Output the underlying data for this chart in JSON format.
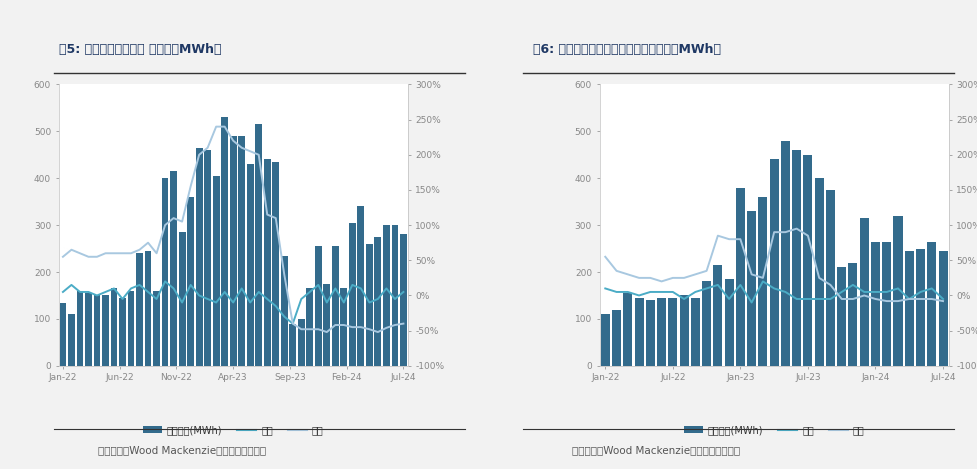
{
  "chart1": {
    "title": "图5: 德国储能月度新增 （单位：MWh）",
    "source": "数据来源：Wood Mackenzie，东吴证券研究所",
    "xtick_labels": [
      "Jan-22",
      "Jun-22",
      "Nov-22",
      "Apr-23",
      "Sep-23",
      "Feb-24",
      "Jul-24"
    ],
    "bar_color": "#336B8C",
    "line_huan_color": "#4BACC6",
    "line_tong_color": "#A8C8E0",
    "bar_values": [
      135,
      110,
      160,
      155,
      150,
      150,
      165,
      145,
      160,
      240,
      245,
      160,
      400,
      415,
      285,
      360,
      465,
      460,
      405,
      530,
      490,
      490,
      430,
      515,
      440,
      435,
      235,
      90,
      100,
      165,
      255,
      175,
      255,
      165,
      305,
      340,
      260,
      275,
      300,
      300,
      280
    ],
    "huan_pct": [
      5,
      15,
      5,
      5,
      0,
      5,
      10,
      -5,
      10,
      15,
      5,
      -5,
      20,
      10,
      -10,
      15,
      0,
      -5,
      -10,
      5,
      -10,
      10,
      -10,
      5,
      -5,
      -15,
      -30,
      -40,
      -5,
      5,
      15,
      -10,
      10,
      -10,
      15,
      10,
      -10,
      -5,
      10,
      -5,
      5
    ],
    "tong_pct": [
      55,
      65,
      60,
      55,
      55,
      60,
      60,
      60,
      60,
      65,
      75,
      60,
      100,
      110,
      105,
      155,
      200,
      210,
      240,
      240,
      220,
      210,
      205,
      200,
      115,
      110,
      30,
      -40,
      -48,
      -48,
      -48,
      -52,
      -42,
      -42,
      -45,
      -45,
      -48,
      -52,
      -46,
      -42,
      -40
    ]
  },
  "chart2": {
    "title": "图6: 德国电池户用储能月度新增（单位：MWh）",
    "source": "数据来源：Wood Mackenzie，东吴证券研究所",
    "xtick_labels": [
      "Jan-22",
      "Jul-22",
      "Jan-23",
      "Jul-23",
      "Jan-24",
      "Jul-24"
    ],
    "bar_color": "#336B8C",
    "line_huan_color": "#4BACC6",
    "line_tong_color": "#A8C8E0",
    "bar_values": [
      110,
      120,
      155,
      145,
      140,
      145,
      145,
      150,
      145,
      180,
      215,
      185,
      380,
      330,
      360,
      440,
      480,
      460,
      450,
      400,
      375,
      210,
      220,
      315,
      265,
      265,
      320,
      245,
      250,
      265,
      245
    ],
    "huan_pct": [
      10,
      5,
      5,
      0,
      5,
      5,
      5,
      -5,
      5,
      10,
      15,
      -5,
      15,
      -10,
      20,
      10,
      5,
      -5,
      -5,
      -5,
      -5,
      5,
      15,
      5,
      5,
      5,
      10,
      -5,
      5,
      10,
      -5
    ],
    "tong_pct": [
      55,
      35,
      30,
      25,
      25,
      20,
      25,
      25,
      30,
      35,
      85,
      80,
      80,
      30,
      25,
      90,
      90,
      95,
      85,
      25,
      15,
      -5,
      -5,
      0,
      -5,
      -8,
      -8,
      -5,
      -5,
      -5,
      -8
    ]
  },
  "legend_labels": [
    "新增容量(MWh)",
    "环比",
    "同比"
  ],
  "ylim_left": [
    0,
    600
  ],
  "ylim_right": [
    -100,
    300
  ],
  "right_ticks": [
    -100,
    -50,
    0,
    50,
    100,
    150,
    200,
    250,
    300
  ],
  "left_ticks": [
    0,
    100,
    200,
    300,
    400,
    500,
    600
  ],
  "bg_color": "#F2F2F2",
  "plot_bg": "#FFFFFF",
  "title_color": "#1F3864",
  "tick_color": "#888888",
  "source_color": "#555555"
}
